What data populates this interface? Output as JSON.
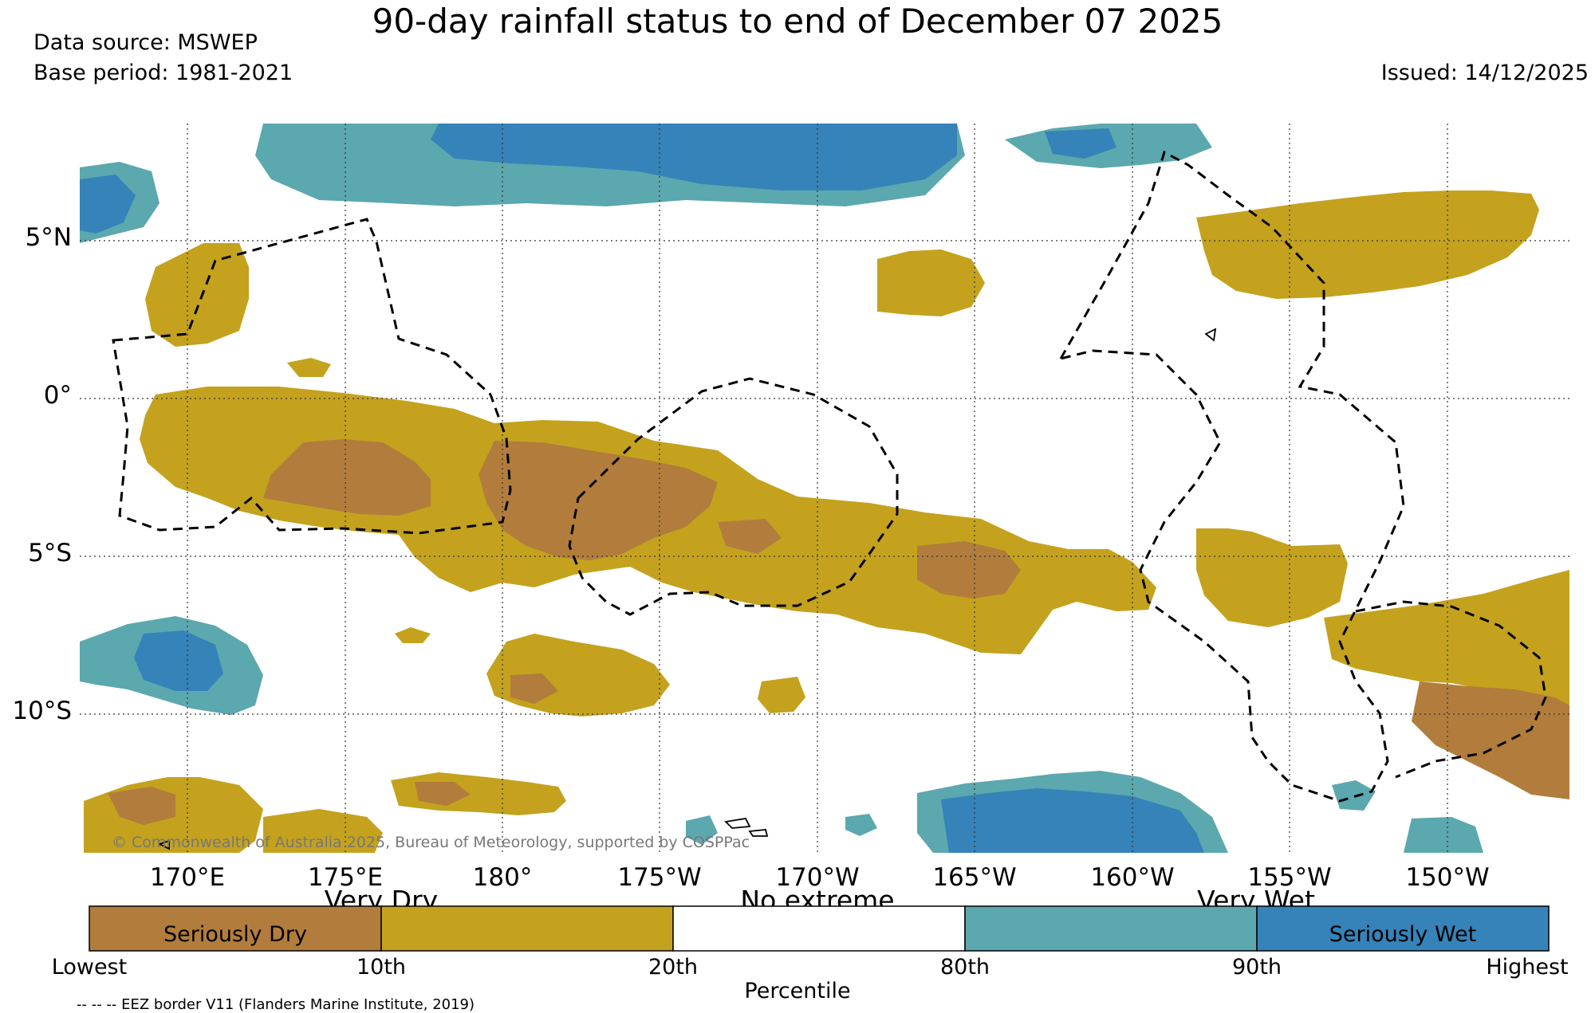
{
  "header": {
    "title": "90-day rainfall status to end of December 07 2025",
    "data_source": "Data source: MSWEP",
    "base_period": "Base period: 1981-2021",
    "issued": "Issued: 14/12/2025"
  },
  "map": {
    "lat_labels": [
      "5°N",
      "0°",
      "5°S",
      "10°S"
    ],
    "lon_labels": [
      "170°E",
      "175°E",
      "180°",
      "175°W",
      "170°W",
      "165°W",
      "160°W",
      "155°W",
      "150°W"
    ],
    "copyright": "© Commonwealth of Australia 2025, Bureau of Meteorology, supported by COSPPac",
    "eez_note": "-- -- -- EEZ border V11 (Flanders Marine Institute, 2019)"
  },
  "legend": {
    "categories": [
      "Very Dry",
      "No extreme",
      "Very Wet"
    ],
    "segments": [
      {
        "label": "Seriously Dry",
        "color": "#b27d3c"
      },
      {
        "label": "",
        "color": "#c4a21e"
      },
      {
        "label": "",
        "color": "#ffffff"
      },
      {
        "label": "",
        "color": "#5ba8ae"
      },
      {
        "label": "Seriously Wet",
        "color": "#3583b9"
      }
    ],
    "ticks": [
      "Lowest",
      "10th",
      "20th",
      "80th",
      "90th",
      "Highest"
    ],
    "axis_label": "Percentile"
  },
  "colors": {
    "seriously_dry": "#b27d3c",
    "very_dry": "#c4a21e",
    "very_wet": "#5ba8ae",
    "seriously_wet": "#3583b9"
  }
}
